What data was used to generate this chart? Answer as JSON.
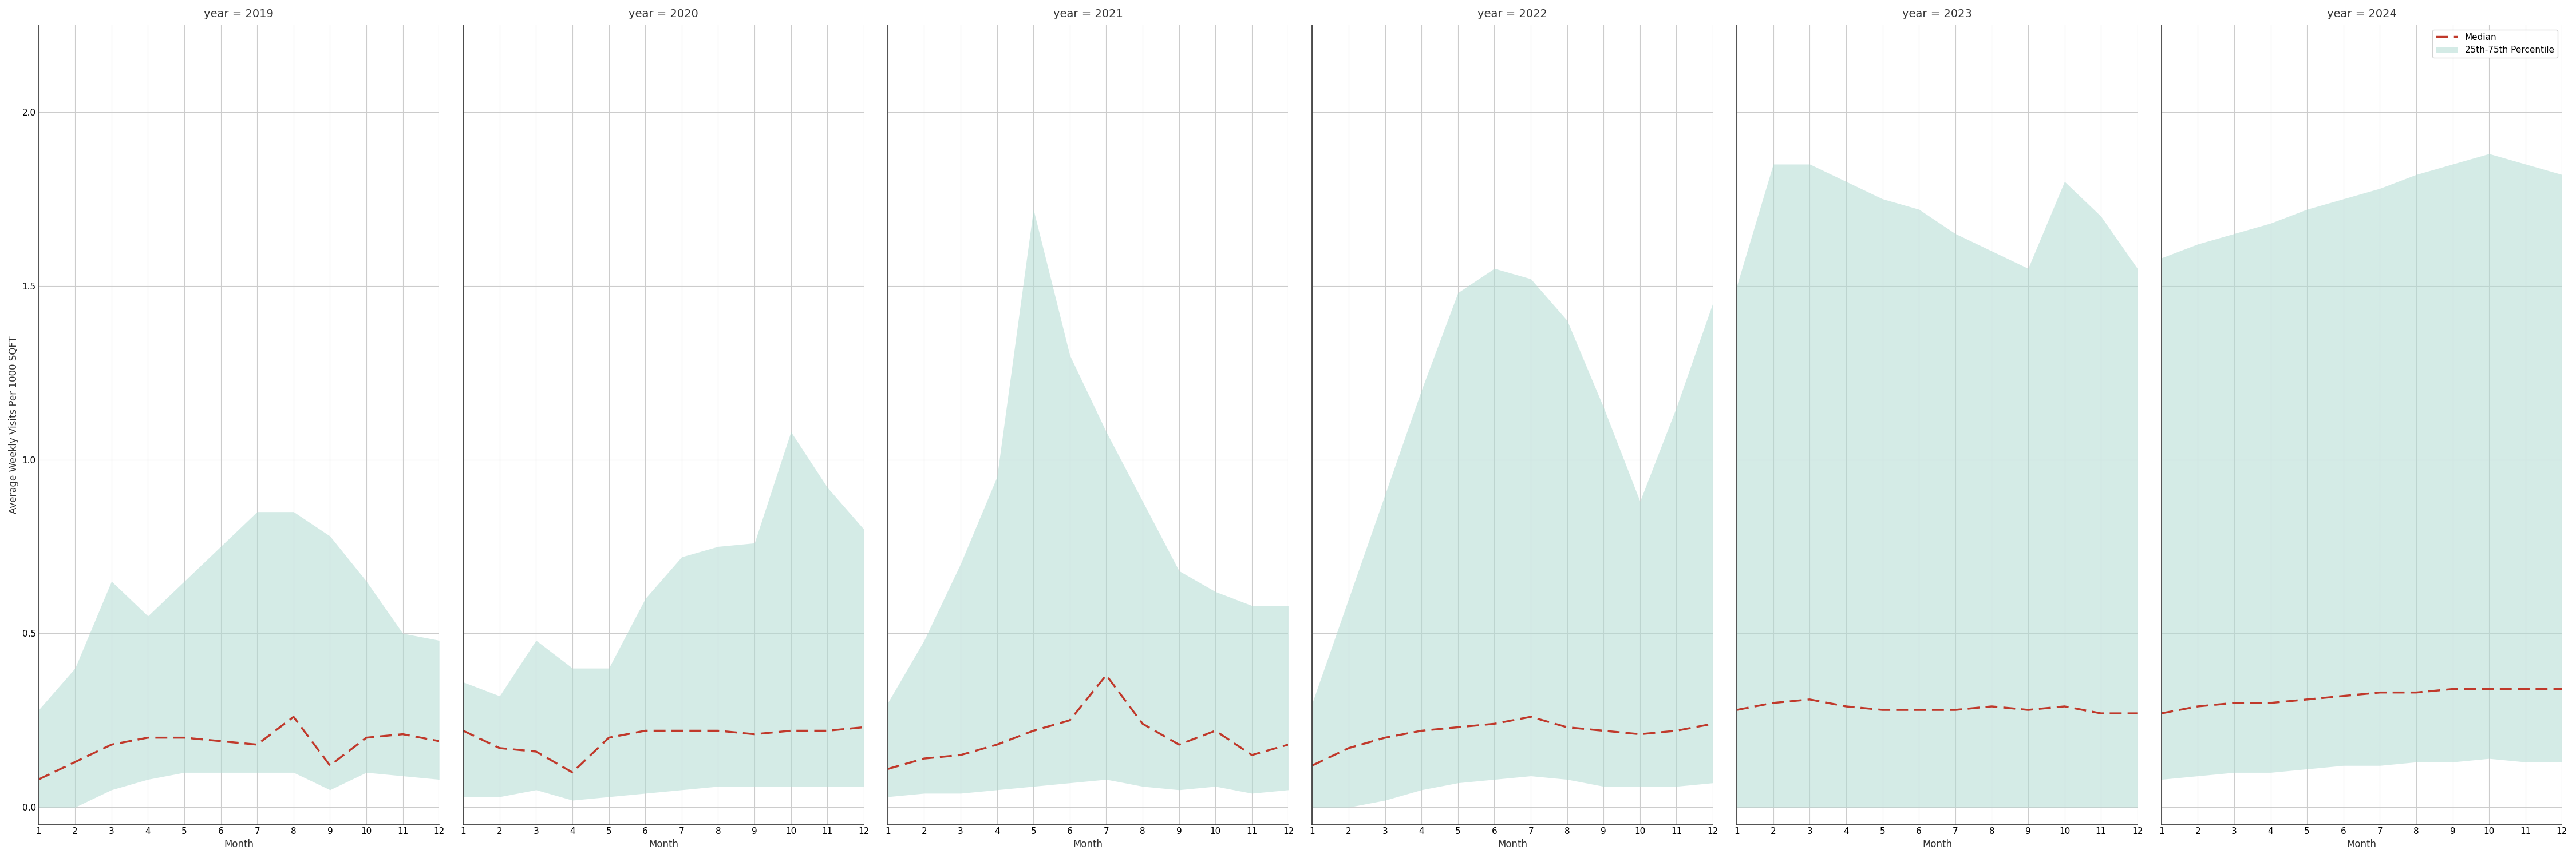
{
  "years": [
    2019,
    2020,
    2021,
    2022,
    2023,
    2024
  ],
  "months": [
    1,
    2,
    3,
    4,
    5,
    6,
    7,
    8,
    9,
    10,
    11,
    12
  ],
  "median": {
    "2019": [
      0.08,
      0.13,
      0.18,
      0.2,
      0.2,
      0.19,
      0.18,
      0.26,
      0.12,
      0.2,
      0.21,
      0.19
    ],
    "2020": [
      0.22,
      0.17,
      0.16,
      0.1,
      0.2,
      0.22,
      0.22,
      0.22,
      0.21,
      0.22,
      0.22,
      0.23
    ],
    "2021": [
      0.11,
      0.14,
      0.15,
      0.18,
      0.22,
      0.25,
      0.38,
      0.24,
      0.18,
      0.22,
      0.15,
      0.18
    ],
    "2022": [
      0.12,
      0.17,
      0.2,
      0.22,
      0.23,
      0.24,
      0.26,
      0.23,
      0.22,
      0.21,
      0.22,
      0.24
    ],
    "2023": [
      0.28,
      0.3,
      0.31,
      0.29,
      0.28,
      0.28,
      0.28,
      0.29,
      0.28,
      0.29,
      0.27,
      0.27
    ],
    "2024": [
      0.27,
      0.29,
      0.3,
      0.3,
      0.31,
      0.32,
      0.33,
      0.33,
      0.34,
      0.34,
      0.34,
      0.34
    ]
  },
  "p25": {
    "2019": [
      0.0,
      0.0,
      0.05,
      0.08,
      0.1,
      0.1,
      0.1,
      0.1,
      0.05,
      0.1,
      0.09,
      0.08
    ],
    "2020": [
      0.03,
      0.03,
      0.05,
      0.02,
      0.03,
      0.04,
      0.05,
      0.06,
      0.06,
      0.06,
      0.06,
      0.06
    ],
    "2021": [
      0.03,
      0.04,
      0.04,
      0.05,
      0.06,
      0.07,
      0.08,
      0.06,
      0.05,
      0.06,
      0.04,
      0.05
    ],
    "2022": [
      0.0,
      0.0,
      0.02,
      0.05,
      0.07,
      0.08,
      0.09,
      0.08,
      0.06,
      0.06,
      0.06,
      0.07
    ],
    "2023": [
      0.0,
      0.0,
      0.0,
      0.0,
      0.0,
      0.0,
      0.0,
      0.0,
      0.0,
      0.0,
      0.0,
      0.0
    ],
    "2024": [
      0.08,
      0.09,
      0.1,
      0.1,
      0.11,
      0.12,
      0.12,
      0.13,
      0.13,
      0.14,
      0.13,
      0.13
    ]
  },
  "p75": {
    "2019": [
      0.28,
      0.4,
      0.65,
      0.55,
      0.65,
      0.75,
      0.85,
      0.85,
      0.78,
      0.65,
      0.5,
      0.48
    ],
    "2020": [
      0.36,
      0.32,
      0.48,
      0.4,
      0.4,
      0.6,
      0.72,
      0.75,
      0.76,
      1.08,
      0.92,
      0.8
    ],
    "2021": [
      0.3,
      0.48,
      0.7,
      0.95,
      1.72,
      1.3,
      1.08,
      0.88,
      0.68,
      0.62,
      0.58,
      0.58
    ],
    "2022": [
      0.3,
      0.6,
      0.9,
      1.2,
      1.48,
      1.55,
      1.52,
      1.4,
      1.15,
      0.88,
      1.15,
      1.45
    ],
    "2023": [
      1.5,
      1.85,
      1.85,
      1.8,
      1.75,
      1.72,
      1.65,
      1.6,
      1.55,
      1.8,
      1.7,
      1.55
    ],
    "2024": [
      1.58,
      1.62,
      1.65,
      1.68,
      1.72,
      1.75,
      1.78,
      1.82,
      1.85,
      1.88,
      1.85,
      1.82
    ]
  },
  "ylim": [
    -0.05,
    2.25
  ],
  "yticks": [
    0.0,
    0.5,
    1.0,
    1.5,
    2.0
  ],
  "fill_color": "#b2dbd3",
  "fill_alpha": 0.55,
  "line_color": "#c0392b",
  "ylabel": "Average Weekly Visits Per 1000 SQFT",
  "xlabel": "Month",
  "background_color": "#ffffff",
  "grid_color": "#cccccc",
  "title_fontsize": 14,
  "label_fontsize": 12,
  "tick_fontsize": 11
}
